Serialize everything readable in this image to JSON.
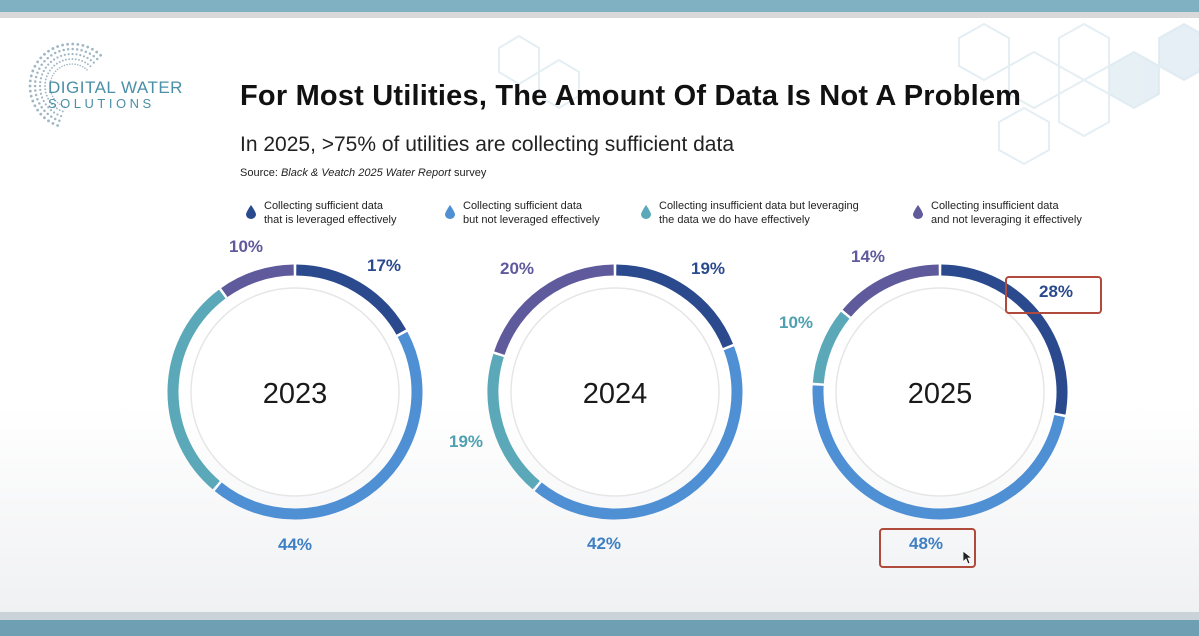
{
  "logo": {
    "line1": "DIGITAL WATER",
    "line2": "SOLUTIONS"
  },
  "title": "For Most Utilities, The Amount Of Data Is Not A Problem",
  "subtitle": "In 2025, >75% of utilities are collecting sufficient data",
  "source": {
    "prefix": "Source: ",
    "name": "Black & Veatch 2025 Water Report",
    "suffix": " survey"
  },
  "legend": [
    {
      "line1": "Collecting sufficient data",
      "line2": "that is leveraged effectively",
      "color": "#2b4a8e"
    },
    {
      "line1": "Collecting sufficient data",
      "line2": "but not leveraged effectively",
      "color": "#4f8fd4"
    },
    {
      "line1": "Collecting insufficient data but leveraging",
      "line2": "the data we do have effectively",
      "color": "#5aa8b8"
    },
    {
      "line1": "Collecting insufficient data",
      "line2": "and not leveraging it effectively",
      "color": "#5e5a9c"
    }
  ],
  "chart_data": {
    "type": "pie",
    "variant": "donut",
    "categories": [
      "Collecting sufficient data that is leveraged effectively",
      "Collecting sufficient data but not leveraged effectively",
      "Collecting insufficient data but leveraging the data we do have effectively",
      "Collecting insufficient data and not leveraging it effectively"
    ],
    "colors": [
      "#2b4a8e",
      "#4f8fd4",
      "#5aa8b8",
      "#5e5a9c"
    ],
    "series": [
      {
        "name": "2023",
        "values": [
          17,
          44,
          29,
          10
        ],
        "labels": [
          "17%",
          "44%",
          "",
          "10%"
        ]
      },
      {
        "name": "2024",
        "values": [
          19,
          42,
          19,
          20
        ],
        "labels": [
          "19%",
          "42%",
          "19%",
          "20%"
        ]
      },
      {
        "name": "2025",
        "values": [
          28,
          48,
          10,
          14
        ],
        "labels": [
          "28%",
          "48%",
          "10%",
          "14%"
        ]
      }
    ],
    "highlighted": [
      "2025:28%",
      "2025:48%"
    ]
  }
}
